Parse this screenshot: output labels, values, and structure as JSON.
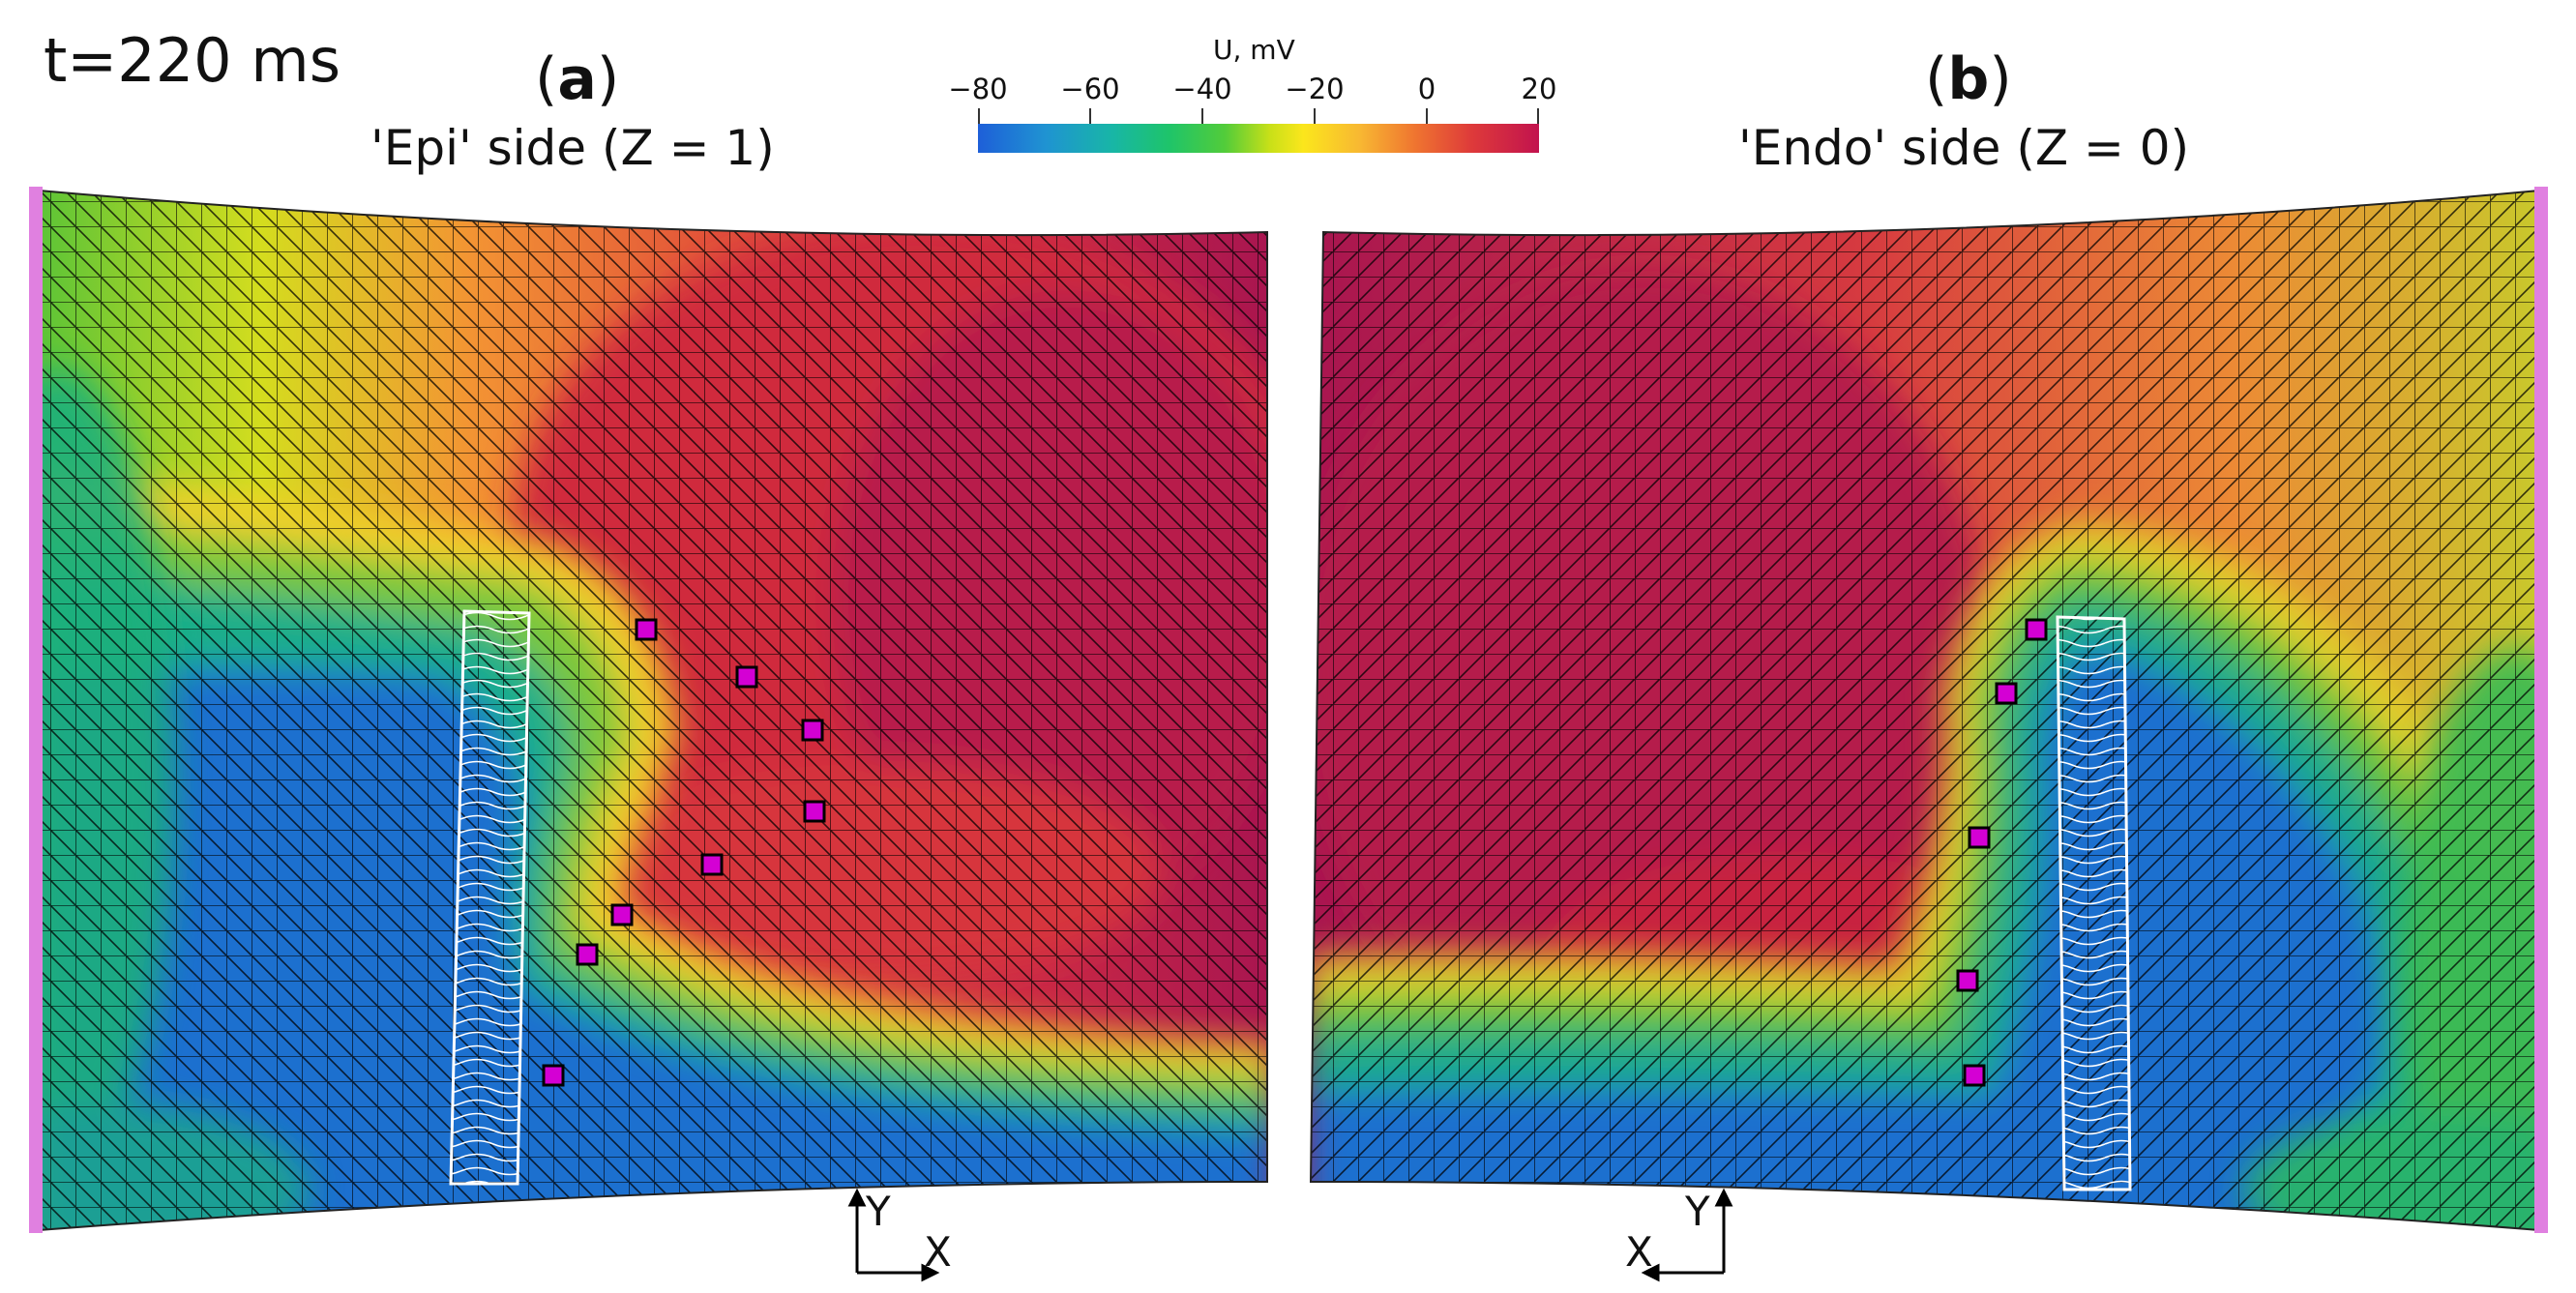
{
  "time_label": "t=220 ms",
  "panel_a": {
    "letter": "a",
    "subtitle": "'Epi' side (Z = 1)"
  },
  "panel_b": {
    "letter": "b",
    "subtitle": "'Endo' side (Z = 0)"
  },
  "colorbar": {
    "title": "U, mV",
    "ticks": [
      "−80",
      "−60",
      "−40",
      "−20",
      "0",
      "20"
    ],
    "range": [
      -80,
      20
    ],
    "colors": [
      "#1e5fd8",
      "#18b6a6",
      "#52cc3a",
      "#fbe61c",
      "#ef7430",
      "#c2134e"
    ]
  },
  "axes_a": {
    "y": "Y",
    "x": "X"
  },
  "axes_b": {
    "y": "Y",
    "x": "X"
  },
  "colors": {
    "marker": "#d400d4",
    "boundary_strip": "#e080e0",
    "mesh_line": "#000000"
  }
}
